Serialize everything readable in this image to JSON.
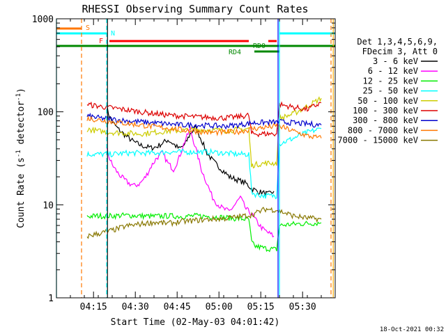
{
  "chart_data": {
    "type": "line",
    "title": "RHESSI Observing Summary Count Rates",
    "xlabel": "Start Time (02-May-03 04:01:42)",
    "ylabel": "Count Rate (s",
    "ylabel_sup": "-1",
    "ylabel_tail": " detector",
    "ylabel_end": ")",
    "x_range_minutes": [
      0,
      100
    ],
    "x_start": "04:01:42",
    "x_ticks": [
      {
        "label": "04:15",
        "minute": 13.3
      },
      {
        "label": "04:30",
        "minute": 28.3
      },
      {
        "label": "04:45",
        "minute": 43.3
      },
      {
        "label": "05:00",
        "minute": 58.3
      },
      {
        "label": "05:15",
        "minute": 73.3
      },
      {
        "label": "05:30",
        "minute": 88.3
      }
    ],
    "y_scale": "log",
    "ylim": [
      1,
      1000
    ],
    "y_ticks": [
      {
        "label": "1",
        "value": 1
      },
      {
        "label": "10",
        "value": 10
      },
      {
        "label": "100",
        "value": 100
      },
      {
        "label": "1000",
        "value": 1000
      }
    ],
    "legend": {
      "placement": "right",
      "header": [
        "Det 1,3,4,5,6,9,",
        "FDecim 3, Att 0"
      ]
    },
    "series": [
      {
        "name": "3 - 6 keV",
        "color": "#000000",
        "x": [
          18,
          19,
          20,
          22,
          24,
          26,
          28,
          30,
          32,
          34,
          36,
          38,
          40,
          42,
          44,
          46,
          48,
          50,
          52,
          54,
          56,
          58,
          60,
          62,
          64,
          66,
          68,
          70,
          72,
          74,
          76,
          78
        ],
        "y": [
          110,
          90,
          78,
          66,
          58,
          52,
          47,
          44,
          42,
          41,
          42,
          46,
          50,
          45,
          40,
          44,
          58,
          68,
          50,
          36,
          30,
          26,
          23,
          20,
          19,
          18,
          17,
          15,
          14,
          13.5,
          13,
          14
        ]
      },
      {
        "name": "6 - 12 keV",
        "color": "#ff00ff",
        "x": [
          18,
          19,
          20,
          22,
          24,
          26,
          28,
          30,
          32,
          34,
          36,
          38,
          40,
          42,
          44,
          46,
          48,
          50,
          52,
          54,
          56,
          58,
          60,
          62,
          64,
          66,
          68,
          70,
          72,
          74,
          76,
          78
        ],
        "y": [
          40,
          32,
          27,
          22,
          19,
          17,
          16,
          17,
          20,
          26,
          32,
          36,
          28,
          24,
          32,
          48,
          65,
          40,
          24,
          17,
          12,
          10,
          9,
          8.5,
          10,
          12,
          9,
          8,
          6.5,
          5.5,
          5,
          4.6
        ]
      },
      {
        "name": "12 - 25 keV",
        "color": "#00ee00",
        "x": [
          11,
          15,
          20,
          25,
          30,
          35,
          40,
          45,
          50,
          55,
          60,
          65,
          69,
          70,
          71,
          75,
          79,
          80,
          85,
          90,
          95
        ],
        "y": [
          7.5,
          7.6,
          7.6,
          7.7,
          7.6,
          7.5,
          7.6,
          7.5,
          7.6,
          7.5,
          7.3,
          7.1,
          7,
          4,
          3.6,
          3.4,
          3.3,
          6,
          6.2,
          6.3,
          6.4
        ]
      },
      {
        "name": "25 - 50 keV",
        "color": "#00ffff",
        "x": [
          11,
          15,
          20,
          25,
          30,
          35,
          40,
          45,
          50,
          55,
          60,
          65,
          69,
          70,
          71,
          75,
          79,
          80,
          85,
          90,
          95
        ],
        "y": [
          35,
          35,
          35,
          36,
          36,
          36,
          37,
          37,
          37,
          37,
          36,
          35,
          35,
          14,
          13,
          12.5,
          12.5,
          45,
          52,
          60,
          66
        ]
      },
      {
        "name": "50 - 100 keV",
        "color": "#cccc00",
        "x": [
          11,
          15,
          20,
          25,
          30,
          35,
          40,
          45,
          50,
          55,
          60,
          65,
          69,
          70,
          71,
          75,
          79,
          80,
          85,
          90,
          95
        ],
        "y": [
          65,
          62,
          60,
          59,
          58,
          60,
          62,
          63,
          64,
          64,
          63,
          64,
          66,
          26,
          27,
          28,
          28,
          85,
          95,
          115,
          140
        ]
      },
      {
        "name": "100 - 300 keV",
        "color": "#dd0000",
        "x": [
          11,
          15,
          20,
          25,
          30,
          35,
          40,
          45,
          50,
          55,
          60,
          65,
          69,
          70,
          71,
          75,
          79,
          80,
          85,
          90,
          95
        ],
        "y": [
          120,
          115,
          110,
          105,
          100,
          96,
          92,
          90,
          88,
          87,
          86,
          88,
          92,
          58,
          58,
          58,
          58,
          120,
          112,
          106,
          125
        ]
      },
      {
        "name": "300 - 800 keV",
        "color": "#0000cc",
        "x": [
          11,
          15,
          20,
          25,
          30,
          35,
          40,
          45,
          50,
          55,
          60,
          65,
          69,
          70,
          71,
          75,
          79,
          80,
          85,
          90,
          95
        ],
        "y": [
          90,
          86,
          83,
          80,
          78,
          76,
          74,
          72,
          72,
          71,
          70,
          72,
          75,
          76,
          76,
          77,
          77,
          78,
          76,
          74,
          72
        ]
      },
      {
        "name": "800 - 7000 keV",
        "color": "#ff7700",
        "x": [
          11,
          15,
          20,
          25,
          30,
          35,
          40,
          45,
          50,
          55,
          60,
          65,
          69,
          70,
          71,
          75,
          79,
          80,
          85,
          90,
          95
        ],
        "y": [
          85,
          82,
          78,
          75,
          72,
          69,
          67,
          64,
          62,
          60,
          60,
          61,
          64,
          66,
          66,
          68,
          70,
          70,
          62,
          55,
          52
        ]
      },
      {
        "name": "7000 - 15000 keV",
        "color": "#887700",
        "x": [
          11,
          15,
          20,
          25,
          30,
          35,
          40,
          45,
          50,
          55,
          60,
          65,
          70,
          75,
          79,
          80,
          85,
          90,
          95
        ],
        "y": [
          4.6,
          4.9,
          5.3,
          5.9,
          6.2,
          6.5,
          6.3,
          6.6,
          6.8,
          7,
          7.1,
          7.4,
          7.8,
          9,
          8.8,
          8.6,
          7.6,
          7.2,
          7
        ]
      }
    ],
    "annotations": [
      {
        "text": "S",
        "color": "#ff7700"
      },
      {
        "text": "N",
        "color": "#00ffff"
      },
      {
        "text": "F",
        "color": "#ff0000"
      },
      {
        "text": "RD0",
        "color": "#008800"
      },
      {
        "text": "RD4",
        "color": "#008800"
      }
    ],
    "bars": [
      {
        "label": "S",
        "color": "#ff7700",
        "x0": 0,
        "x1": 9,
        "level": 1
      },
      {
        "label": "N",
        "color": "#00ffff",
        "x0": 0,
        "x1": 18,
        "level": 2
      },
      {
        "label": "N",
        "color": "#00ffff",
        "x0": 80,
        "x1": 100,
        "level": 2
      },
      {
        "label": "F",
        "color": "#ff0000",
        "x0": 19,
        "x1": 69,
        "level": 3
      },
      {
        "label": "F",
        "color": "#ff0000",
        "x0": 76,
        "x1": 79,
        "level": 3
      },
      {
        "label": "RD0",
        "color": "#008800",
        "x0": 0,
        "x1": 100,
        "level": 4
      },
      {
        "label": "RD4",
        "color": "#008800",
        "x0": 71,
        "x1": 80,
        "level": 5
      }
    ],
    "vlines": [
      {
        "x": 0,
        "color": "#00ffff",
        "style": "solid"
      },
      {
        "x": 9,
        "color": "#ff7700",
        "style": "dash"
      },
      {
        "x": 18,
        "color": "#00ffff",
        "style": "dash"
      },
      {
        "x": 18.3,
        "color": "#000000",
        "style": "solid"
      },
      {
        "x": 80,
        "color": "#00ffff",
        "style": "solid"
      },
      {
        "x": 79.5,
        "color": "#0000ff",
        "style": "solid"
      },
      {
        "x": 98.5,
        "color": "#ff7700",
        "style": "dash"
      },
      {
        "x": 99.3,
        "color": "#ffaa00",
        "style": "solid"
      }
    ]
  },
  "footer": {
    "timestamp": "18-Oct-2021 00:32"
  }
}
